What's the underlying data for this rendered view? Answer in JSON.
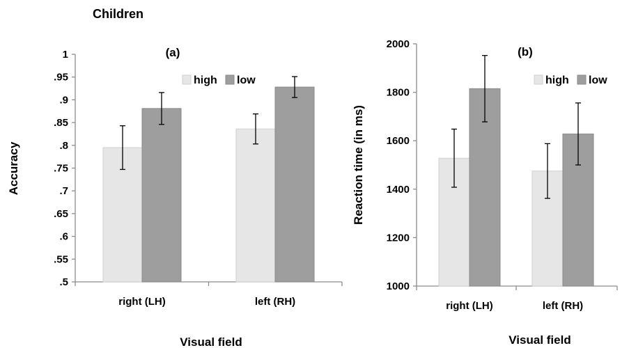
{
  "page_title": "Children",
  "xlabel_shared": "Visual field",
  "colors": {
    "high": "#e6e6e6",
    "low": "#9e9e9e",
    "axis": "#8c8c8c",
    "error": "#000000"
  },
  "chart_data": [
    {
      "type": "bar",
      "title": "(a)",
      "xlabel": "Visual field",
      "ylabel": "Accuracy",
      "ylim": [
        0.5,
        1.0
      ],
      "yticks": [
        0.5,
        0.55,
        0.6,
        0.65,
        0.7,
        0.75,
        0.8,
        0.85,
        0.9,
        0.95,
        1.0
      ],
      "ytick_labels": [
        ".5",
        ".55",
        ".6",
        ".65",
        ".7",
        ".75",
        ".8",
        ".85",
        ".9",
        ".95",
        "1"
      ],
      "categories": [
        "right (LH)",
        "left (RH)"
      ],
      "legend": "top-right",
      "grid": false,
      "series": [
        {
          "name": "high",
          "values": [
            0.795,
            0.836
          ],
          "errors": [
            0.048,
            0.033
          ]
        },
        {
          "name": "low",
          "values": [
            0.881,
            0.928
          ],
          "errors": [
            0.035,
            0.023
          ]
        }
      ]
    },
    {
      "type": "bar",
      "title": "(b)",
      "xlabel": "Visual field",
      "ylabel": "Reaction time (in ms)",
      "ylim": [
        1000,
        2000
      ],
      "yticks": [
        1000,
        1200,
        1400,
        1600,
        1800,
        2000
      ],
      "ytick_labels": [
        "1000",
        "1200",
        "1400",
        "1600",
        "1800",
        "2000"
      ],
      "categories": [
        "right (LH)",
        "left (RH)"
      ],
      "legend": "top-right",
      "grid": false,
      "series": [
        {
          "name": "high",
          "values": [
            1528,
            1475
          ],
          "errors": [
            120,
            113
          ]
        },
        {
          "name": "low",
          "values": [
            1815,
            1628
          ],
          "errors": [
            137,
            128
          ]
        }
      ]
    }
  ]
}
